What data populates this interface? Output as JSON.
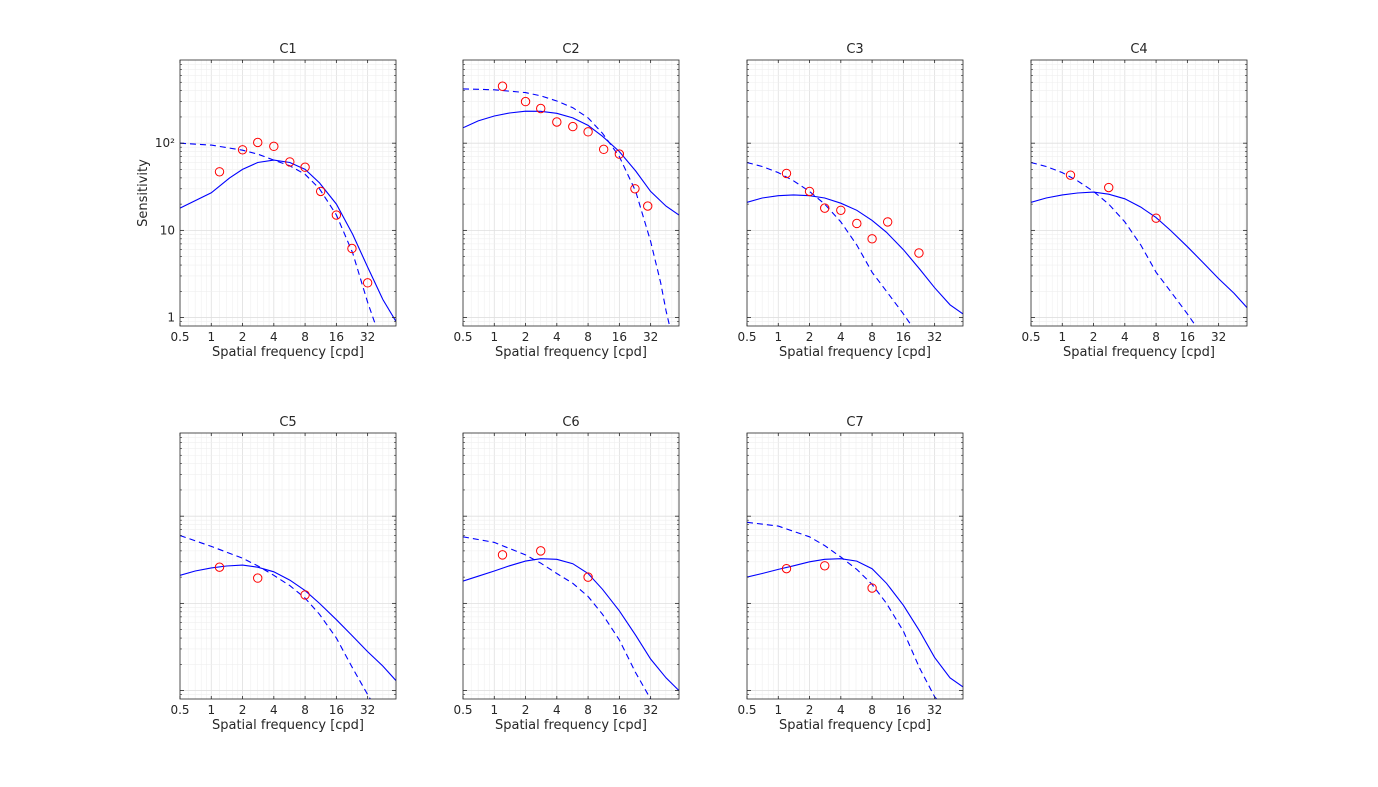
{
  "figure": {
    "xlabel": "Spatial frequency [cpd]",
    "ylabel": "Sensitivity",
    "x_ticks": [
      0.5,
      1,
      2,
      4,
      8,
      16,
      32
    ],
    "x_tick_labels": [
      "0.5",
      "1",
      "2",
      "4",
      "8",
      "16",
      "32"
    ],
    "y_tick_labels": [
      "1",
      "10",
      "10²"
    ],
    "colors": {
      "curve": "#0000ff",
      "markers": "#ff0000",
      "axes": "#262626",
      "grid": "#dfdfdf"
    }
  },
  "chart_data": [
    {
      "type": "line",
      "title": "C1",
      "xlabel": "Spatial frequency [cpd]",
      "ylabel": "Sensitivity",
      "xscale": "log",
      "yscale": "log",
      "xlim": [
        0.5,
        60
      ],
      "ylim": [
        0.8,
        900
      ],
      "grid": true,
      "show_ytick_labels": true,
      "series": [
        {
          "style": "solid",
          "x": [
            0.5,
            1,
            1.5,
            2,
            2.8,
            4,
            5.7,
            8,
            11,
            16,
            23,
            32,
            45,
            60
          ],
          "y": [
            18,
            27,
            40,
            50,
            60,
            64,
            60,
            50,
            35,
            20,
            9,
            3.8,
            1.6,
            0.9
          ]
        },
        {
          "style": "dashed",
          "x": [
            0.5,
            1,
            2,
            2.8,
            4,
            5.7,
            8,
            11,
            16,
            23,
            32,
            40
          ],
          "y": [
            100,
            95,
            83,
            75,
            64,
            55,
            44,
            30,
            15,
            5.5,
            1.5,
            0.7
          ]
        },
        {
          "style": "markers",
          "x": [
            1.2,
            2,
            2.8,
            4,
            5.7,
            8,
            11.3,
            16,
            22.6,
            32
          ],
          "y": [
            47,
            84,
            102,
            92,
            61,
            53,
            28,
            15,
            6.2,
            2.5
          ]
        }
      ]
    },
    {
      "type": "line",
      "title": "C2",
      "xlabel": "Spatial frequency [cpd]",
      "xscale": "log",
      "yscale": "log",
      "xlim": [
        0.5,
        60
      ],
      "ylim": [
        0.8,
        900
      ],
      "grid": true,
      "show_ytick_labels": false,
      "series": [
        {
          "style": "solid",
          "x": [
            0.5,
            0.7,
            1,
            1.4,
            2,
            2.8,
            4,
            5.7,
            8,
            11,
            16,
            23,
            32,
            45,
            60
          ],
          "y": [
            150,
            180,
            205,
            222,
            233,
            232,
            220,
            195,
            160,
            120,
            80,
            48,
            28,
            19,
            15
          ]
        },
        {
          "style": "dashed",
          "x": [
            0.5,
            1,
            2,
            2.8,
            4,
            5.7,
            8,
            11,
            16,
            23,
            32,
            40,
            45,
            50
          ],
          "y": [
            420,
            410,
            380,
            350,
            305,
            255,
            195,
            130,
            70,
            28,
            7.5,
            2.5,
            1.2,
            0.7
          ]
        },
        {
          "style": "markers",
          "x": [
            1.2,
            2,
            2.8,
            4,
            5.7,
            8,
            11.3,
            16,
            22.6,
            30
          ],
          "y": [
            450,
            300,
            250,
            175,
            155,
            135,
            85,
            75,
            30,
            19
          ]
        }
      ]
    },
    {
      "type": "line",
      "title": "C3",
      "xlabel": "Spatial frequency [cpd]",
      "xscale": "log",
      "yscale": "log",
      "xlim": [
        0.5,
        60
      ],
      "ylim": [
        0.8,
        900
      ],
      "grid": true,
      "show_ytick_labels": false,
      "series": [
        {
          "style": "solid",
          "x": [
            0.5,
            0.7,
            1,
            1.4,
            2,
            2.8,
            4,
            5.7,
            8,
            11,
            16,
            23,
            32,
            45,
            60
          ],
          "y": [
            21,
            23.5,
            25,
            25.5,
            25,
            23.5,
            20.5,
            17,
            13,
            9.5,
            6,
            3.6,
            2.2,
            1.4,
            1.1
          ]
        },
        {
          "style": "dashed",
          "x": [
            0.5,
            0.7,
            1,
            1.4,
            2,
            2.8,
            4,
            5.7,
            8,
            11,
            16,
            20
          ],
          "y": [
            60,
            54,
            46,
            37,
            28,
            20,
            12.5,
            6.8,
            3.3,
            2,
            1.1,
            0.75
          ]
        },
        {
          "style": "markers",
          "x": [
            1.2,
            2,
            2.8,
            4,
            5.7,
            8,
            11.3,
            22.6
          ],
          "y": [
            45,
            28,
            18,
            17,
            12,
            8,
            12.5,
            5.5
          ]
        }
      ]
    },
    {
      "type": "line",
      "title": "C4",
      "xlabel": "Spatial frequency [cpd]",
      "xscale": "log",
      "yscale": "log",
      "xlim": [
        0.5,
        60
      ],
      "ylim": [
        0.8,
        900
      ],
      "grid": true,
      "show_ytick_labels": false,
      "series": [
        {
          "style": "solid",
          "x": [
            0.5,
            0.7,
            1,
            1.4,
            2,
            2.8,
            4,
            5.7,
            8,
            11,
            16,
            23,
            32,
            45,
            60
          ],
          "y": [
            21,
            23.5,
            25.5,
            26.8,
            27.5,
            26,
            23,
            18.5,
            14,
            10,
            6.5,
            4.2,
            2.8,
            1.9,
            1.3
          ]
        },
        {
          "style": "dashed",
          "x": [
            0.5,
            0.7,
            1,
            1.4,
            2,
            2.8,
            4,
            5.7,
            8,
            11,
            16,
            20
          ],
          "y": [
            60,
            54,
            46,
            37,
            28,
            20,
            12.5,
            6.8,
            3.3,
            2,
            1.1,
            0.75
          ]
        },
        {
          "style": "markers",
          "x": [
            1.2,
            2.8,
            8
          ],
          "y": [
            43,
            31,
            13.8
          ]
        }
      ]
    },
    {
      "type": "line",
      "title": "C5",
      "xlabel": "Spatial frequency [cpd]",
      "xscale": "log",
      "yscale": "log",
      "xlim": [
        0.5,
        60
      ],
      "ylim": [
        0.8,
        900
      ],
      "grid": true,
      "show_ytick_labels": false,
      "series": [
        {
          "style": "solid",
          "x": [
            0.5,
            0.7,
            1,
            1.4,
            2,
            2.8,
            4,
            5.7,
            8,
            11,
            16,
            23,
            32,
            45,
            60
          ],
          "y": [
            21,
            23.5,
            25.5,
            26.8,
            27.5,
            26,
            23,
            18.5,
            14,
            10,
            6.5,
            4.2,
            2.8,
            1.9,
            1.3
          ]
        },
        {
          "style": "dashed",
          "x": [
            0.5,
            1,
            2,
            2.8,
            4,
            5.7,
            8,
            11,
            16,
            23,
            32,
            35
          ],
          "y": [
            60,
            45,
            33,
            27,
            21,
            16,
            11.5,
            7.5,
            4,
            1.8,
            0.9,
            0.75
          ]
        },
        {
          "style": "markers",
          "x": [
            1.2,
            2.8,
            8
          ],
          "y": [
            26,
            19.5,
            12.5
          ]
        }
      ]
    },
    {
      "type": "line",
      "title": "C6",
      "xlabel": "Spatial frequency [cpd]",
      "xscale": "log",
      "yscale": "log",
      "xlim": [
        0.5,
        60
      ],
      "ylim": [
        0.8,
        900
      ],
      "grid": true,
      "show_ytick_labels": false,
      "series": [
        {
          "style": "solid",
          "x": [
            0.5,
            0.7,
            1,
            1.4,
            2,
            2.8,
            4,
            5.7,
            8,
            11,
            16,
            23,
            32,
            45,
            60
          ],
          "y": [
            18,
            20.5,
            23.5,
            27,
            30.5,
            32.5,
            32,
            28.5,
            22,
            14.5,
            8.2,
            4.3,
            2.3,
            1.4,
            1.0
          ]
        },
        {
          "style": "dashed",
          "x": [
            0.5,
            1,
            2,
            2.8,
            4,
            5.7,
            8,
            11,
            16,
            23,
            32,
            35
          ],
          "y": [
            58,
            50,
            36,
            29,
            22,
            17,
            12,
            7.5,
            3.8,
            1.6,
            0.8,
            0.7
          ]
        },
        {
          "style": "markers",
          "x": [
            1.2,
            2.8,
            8
          ],
          "y": [
            36,
            40,
            20
          ]
        }
      ]
    },
    {
      "type": "line",
      "title": "C7",
      "xlabel": "Spatial frequency [cpd]",
      "xscale": "log",
      "yscale": "log",
      "xlim": [
        0.5,
        60
      ],
      "ylim": [
        0.8,
        900
      ],
      "grid": true,
      "show_ytick_labels": false,
      "series": [
        {
          "style": "solid",
          "x": [
            0.5,
            0.7,
            1,
            1.4,
            2,
            2.8,
            4,
            5.7,
            8,
            11,
            16,
            23,
            32,
            45,
            60
          ],
          "y": [
            20,
            22,
            24.5,
            27,
            30,
            32,
            32.5,
            30.5,
            25,
            17,
            9.5,
            4.8,
            2.4,
            1.4,
            1.1
          ]
        },
        {
          "style": "dashed",
          "x": [
            0.5,
            1,
            2,
            2.8,
            4,
            5.7,
            8,
            11,
            16,
            23,
            32,
            37
          ],
          "y": [
            85,
            77,
            58,
            46,
            34,
            24.5,
            16.5,
            10,
            4.8,
            1.8,
            0.85,
            0.7
          ]
        },
        {
          "style": "markers",
          "x": [
            1.2,
            2.8,
            8
          ],
          "y": [
            25,
            27,
            15
          ]
        }
      ]
    }
  ]
}
